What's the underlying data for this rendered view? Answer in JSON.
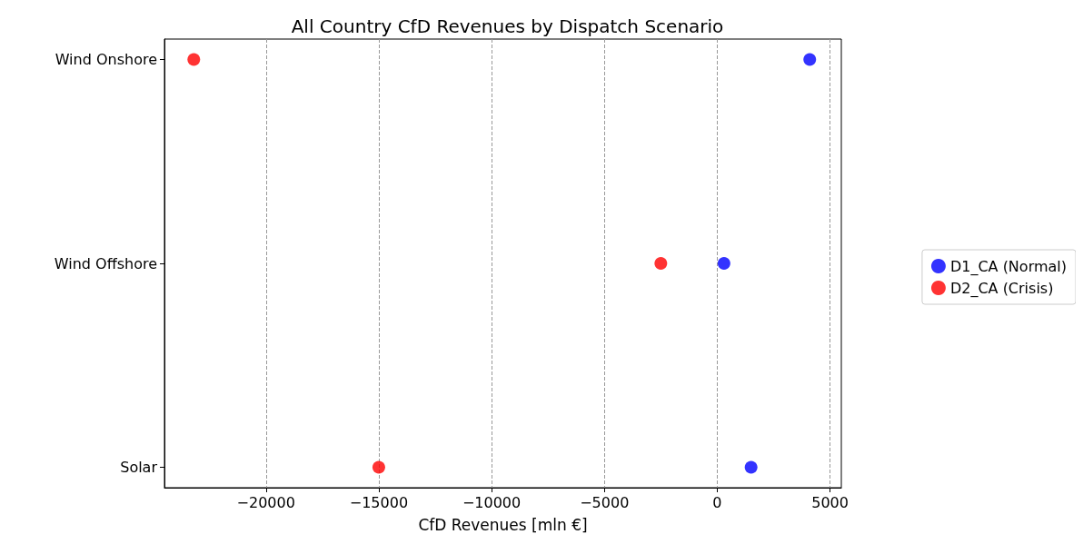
{
  "chart_data": {
    "type": "scatter",
    "title": "All Country CfD Revenues by Dispatch Scenario",
    "xlabel": "CfD Revenues [mln €]",
    "orientation": "horizontal",
    "categories": [
      "Wind Onshore",
      "Wind Offshore",
      "Solar"
    ],
    "series": [
      {
        "name": "D1_CA (Normal)",
        "color": "#0000ff",
        "values": [
          4100,
          300,
          1500
        ]
      },
      {
        "name": "D2_CA (Crisis)",
        "color": "#ff0000",
        "values": [
          -23200,
          -2500,
          -15000
        ]
      }
    ],
    "xlim": [
      -24500,
      5500
    ],
    "xticks": [
      -20000,
      -15000,
      -10000,
      -5000,
      0,
      5000
    ],
    "grid": "x",
    "legend": "right",
    "marker": "circle"
  }
}
